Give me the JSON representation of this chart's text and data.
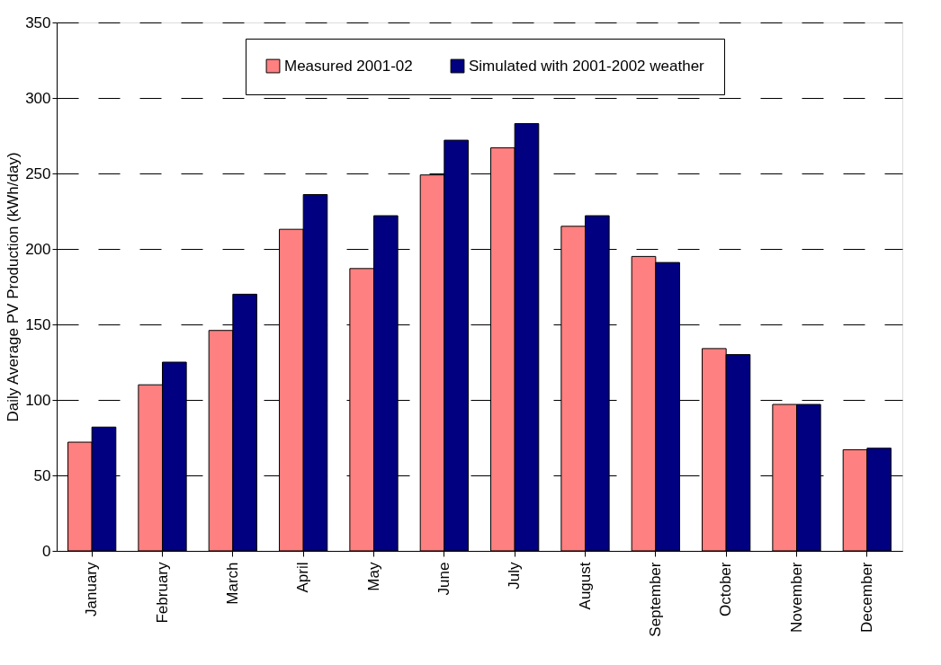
{
  "chart_data": {
    "type": "bar",
    "ylabel": "Daily Average PV Production (kWh/day)",
    "categories": [
      "January",
      "February",
      "March",
      "April",
      "May",
      "June",
      "July",
      "August",
      "September",
      "October",
      "November",
      "December"
    ],
    "series": [
      {
        "name": "Measured 2001-02",
        "color": "#ff8080",
        "values": [
          72,
          110,
          146,
          213,
          187,
          249,
          267,
          215,
          195,
          134,
          97,
          67
        ]
      },
      {
        "name": "Simulated with 2001-2002 weather",
        "color": "#000080",
        "values": [
          82,
          125,
          170,
          236,
          222,
          272,
          283,
          222,
          191,
          130,
          97,
          68
        ]
      }
    ],
    "ylim": [
      0,
      350
    ],
    "yticks": [
      0,
      50,
      100,
      150,
      200,
      250,
      300,
      350
    ],
    "grid": "y",
    "legend": "top"
  }
}
